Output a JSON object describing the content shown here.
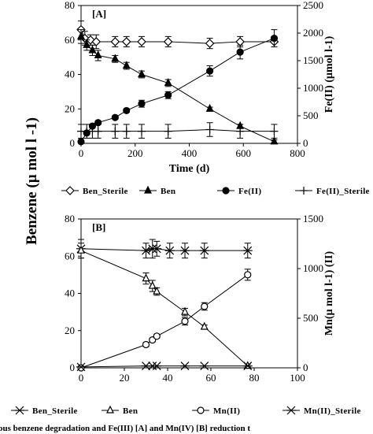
{
  "shared_ylabel": "Benzene (µ mol l -1)",
  "caption": "ous benzene degradation and Fe(III) [A] and Mn(IV) [B] reduction t",
  "chart_data": [
    {
      "panel": "[A]",
      "type": "line",
      "xlabel": "Time (d)",
      "ylabel_right": "Fe(II) (µmol l-1)",
      "xlim": [
        0,
        800
      ],
      "ylim_left": [
        0,
        80
      ],
      "ylim_right": [
        0,
        2500
      ],
      "xticks": [
        0,
        200,
        400,
        600,
        800
      ],
      "yticks_left": [
        0,
        20,
        40,
        60,
        80
      ],
      "yticks_right": [
        0,
        500,
        1000,
        1500,
        2000,
        2500
      ],
      "grid": false,
      "legend_position": "bottom",
      "series": [
        {
          "name": "Ben_Sterile",
          "axis": "left",
          "marker": "diamond-open",
          "x": [
            0,
            14,
            35,
            56,
            126,
            168,
            224,
            322,
            476,
            588,
            714
          ],
          "y": [
            66,
            61,
            60,
            59,
            59,
            59,
            59,
            59,
            58,
            59,
            59
          ],
          "err": [
            5,
            4,
            3,
            4,
            3,
            3,
            3,
            3,
            3,
            3,
            3
          ]
        },
        {
          "name": "Ben",
          "axis": "left",
          "marker": "triangle-filled",
          "x": [
            0,
            21,
            42,
            63,
            126,
            168,
            224,
            322,
            476,
            588,
            714
          ],
          "y": [
            62,
            57,
            54,
            51,
            49,
            45,
            40,
            35,
            20,
            10,
            1
          ],
          "err": [
            4,
            3,
            3,
            3,
            2,
            2,
            2,
            2,
            1,
            1,
            1
          ]
        },
        {
          "name": "Fe(II)",
          "axis": "right",
          "marker": "circle-filled",
          "x": [
            0,
            21,
            42,
            63,
            126,
            168,
            224,
            322,
            476,
            588,
            714
          ],
          "y": [
            31,
            188,
            313,
            375,
            469,
            594,
            719,
            875,
            1313,
            1656,
            1906
          ],
          "err": [
            31,
            31,
            31,
            31,
            31,
            31,
            63,
            63,
            94,
            125,
            156
          ]
        },
        {
          "name": "Fe(II)_Sterile",
          "axis": "right",
          "marker": "plus",
          "x": [
            0,
            21,
            42,
            63,
            126,
            168,
            224,
            322,
            476,
            588,
            714
          ],
          "y": [
            219,
            219,
            219,
            219,
            219,
            219,
            219,
            219,
            250,
            219,
            219
          ],
          "err": [
            125,
            125,
            125,
            125,
            125,
            125,
            125,
            125,
            125,
            125,
            125
          ]
        }
      ]
    },
    {
      "panel": "[B]",
      "type": "line",
      "xlabel": "",
      "ylabel_right": "Mn(µ mol l-1) (II)",
      "xlim": [
        0,
        100
      ],
      "ylim_left": [
        0,
        80
      ],
      "ylim_right": [
        0,
        1500
      ],
      "xticks": [
        0,
        20,
        40,
        60,
        80,
        100
      ],
      "yticks_left": [
        0,
        20,
        40,
        60,
        80
      ],
      "yticks_right": [
        0,
        500,
        1000,
        1500
      ],
      "grid": false,
      "legend_position": "bottom",
      "series": [
        {
          "name": "Ben_Sterile",
          "axis": "left",
          "marker": "asterisk",
          "x": [
            0,
            30,
            33,
            35,
            41,
            48,
            57,
            77
          ],
          "y": [
            64,
            63,
            64,
            64,
            63,
            63,
            63,
            63
          ],
          "err": [
            5,
            4,
            5,
            4,
            4,
            4,
            4,
            4
          ]
        },
        {
          "name": "Ben",
          "axis": "left",
          "marker": "triangle-open",
          "x": [
            0,
            30,
            33,
            35,
            48,
            57,
            77
          ],
          "y": [
            63,
            48,
            44,
            41,
            30,
            22,
            1
          ],
          "err": [
            4,
            3,
            3,
            2,
            2,
            1,
            1
          ]
        },
        {
          "name": "Mn(II)",
          "axis": "right",
          "marker": "circle-open",
          "x": [
            0,
            30,
            33,
            35,
            48,
            57,
            77
          ],
          "y": [
            0,
            234,
            281,
            319,
            469,
            619,
            938
          ],
          "err": [
            0,
            19,
            19,
            19,
            38,
            38,
            56
          ]
        },
        {
          "name": "Mn(II)_Sterile",
          "axis": "right",
          "marker": "asterisk",
          "x": [
            0,
            30,
            33,
            35,
            48,
            57,
            77
          ],
          "y": [
            9,
            19,
            19,
            19,
            19,
            19,
            19
          ],
          "err": [
            0,
            0,
            0,
            0,
            0,
            0,
            0
          ]
        }
      ]
    }
  ]
}
